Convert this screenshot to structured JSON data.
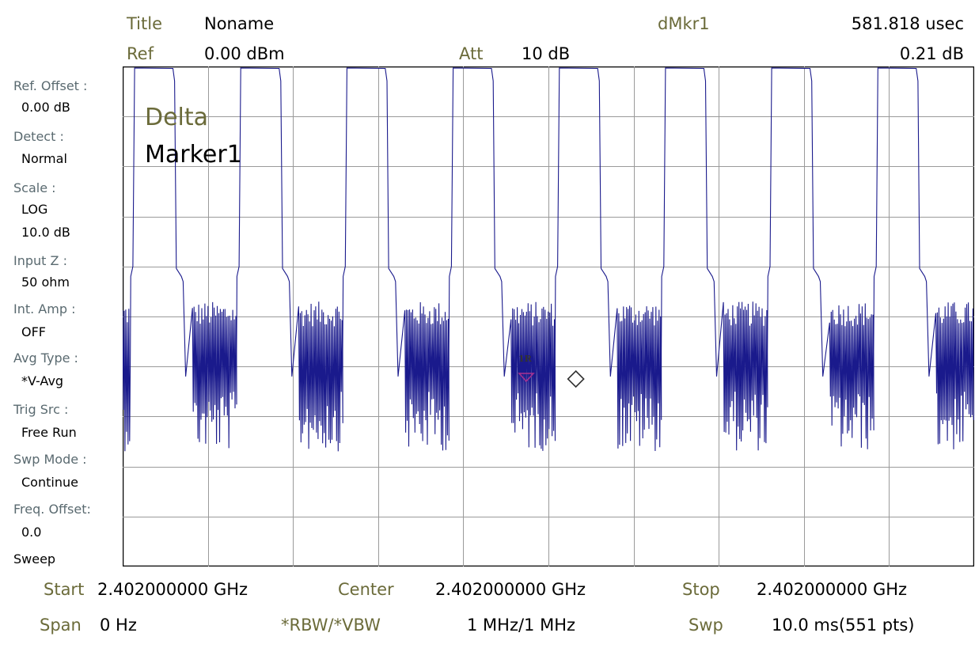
{
  "header": {
    "title_label": "Title",
    "title_value": "Noname",
    "ref_label": "Ref",
    "ref_value": "0.00 dBm",
    "att_label": "Att",
    "att_value": "10 dB",
    "dmkr_label": "dMkr1",
    "dmkr_time": "581.818 usec",
    "dmkr_level": "0.21 dB"
  },
  "sidebar": {
    "items": [
      {
        "label": "Ref. Offset :",
        "values": [
          "0.00 dB"
        ]
      },
      {
        "label": "Detect :",
        "values": [
          "Normal"
        ]
      },
      {
        "label": "Scale :",
        "values": [
          "LOG",
          "10.0 dB"
        ]
      },
      {
        "label": "Input Z :",
        "values": [
          "50 ohm"
        ]
      },
      {
        "label": "Int. Amp :",
        "values": [
          "OFF"
        ]
      },
      {
        "label": "Avg Type :",
        "values": [
          "*V-Avg"
        ]
      },
      {
        "label": "Trig Src :",
        "values": [
          "Free Run"
        ]
      },
      {
        "label": "Swp Mode :",
        "values": [
          "Continue"
        ]
      },
      {
        "label": "Freq. Offset:",
        "values": [
          "0.0"
        ]
      },
      {
        "label": "Sweep",
        "values": []
      }
    ]
  },
  "marker": {
    "mode": "Delta",
    "name": "Marker1",
    "ref_tag": "1R"
  },
  "footer": {
    "start_label": "Start",
    "start_value": "2.402000000 GHz",
    "center_label": "Center",
    "center_value": "2.402000000 GHz",
    "stop_label": "Stop",
    "stop_value": "2.402000000 GHz",
    "span_label": "Span",
    "span_value": "0 Hz",
    "rbw_label": "*RBW/*VBW",
    "rbw_value": "1 MHz/1 MHz",
    "swp_label": "Swp",
    "swp_value": "10.0 ms(551 pts)"
  },
  "colors": {
    "trace": "#1a1a8c",
    "grid": "#9a9a9a",
    "marker_ref": "#a03090"
  },
  "trace": {
    "sweep_ms": 10.0,
    "bursts": 8,
    "high_level_dB": -0.4,
    "noise_floor_dB": -57,
    "ramp_step_dB": -40
  }
}
